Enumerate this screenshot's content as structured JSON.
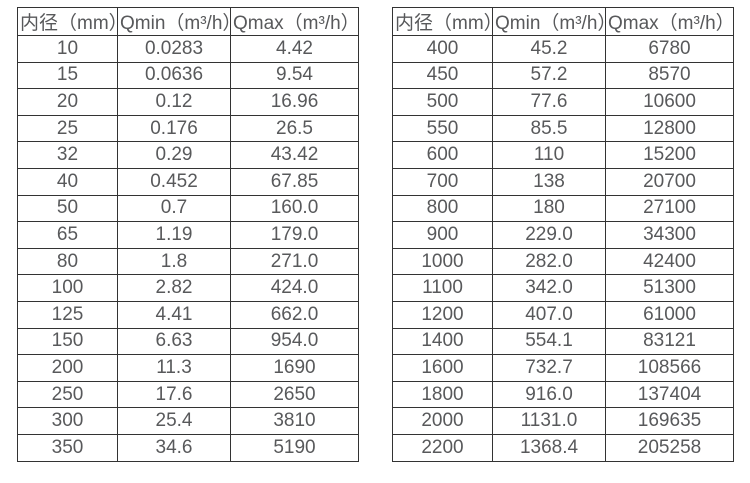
{
  "colors": {
    "border": "#333333",
    "text": "#58595b",
    "background": "#ffffff"
  },
  "tables": [
    {
      "name": "flow-table-small-diameters",
      "headers": [
        "内径（mm）",
        "Qmin（m³/h）",
        "Qmax（m³/h）"
      ],
      "rows": [
        [
          "10",
          "0.0283",
          "4.42"
        ],
        [
          "15",
          "0.0636",
          "9.54"
        ],
        [
          "20",
          "0.12",
          "16.96"
        ],
        [
          "25",
          "0.176",
          "26.5"
        ],
        [
          "32",
          "0.29",
          "43.42"
        ],
        [
          "40",
          "0.452",
          "67.85"
        ],
        [
          "50",
          "0.7",
          "160.0"
        ],
        [
          "65",
          "1.19",
          "179.0"
        ],
        [
          "80",
          "1.8",
          "271.0"
        ],
        [
          "100",
          "2.82",
          "424.0"
        ],
        [
          "125",
          "4.41",
          "662.0"
        ],
        [
          "150",
          "6.63",
          "954.0"
        ],
        [
          "200",
          "11.3",
          "1690"
        ],
        [
          "250",
          "17.6",
          "2650"
        ],
        [
          "300",
          "25.4",
          "3810"
        ],
        [
          "350",
          "34.6",
          "5190"
        ]
      ]
    },
    {
      "name": "flow-table-large-diameters",
      "headers": [
        "内径（mm）",
        "Qmin（m³/h）",
        "Qmax（m³/h）"
      ],
      "rows": [
        [
          "400",
          "45.2",
          "6780"
        ],
        [
          "450",
          "57.2",
          "8570"
        ],
        [
          "500",
          "77.6",
          "10600"
        ],
        [
          "550",
          "85.5",
          "12800"
        ],
        [
          "600",
          "110",
          "15200"
        ],
        [
          "700",
          "138",
          "20700"
        ],
        [
          "800",
          "180",
          "27100"
        ],
        [
          "900",
          "229.0",
          "34300"
        ],
        [
          "1000",
          "282.0",
          "42400"
        ],
        [
          "1100",
          "342.0",
          "51300"
        ],
        [
          "1200",
          "407.0",
          "61000"
        ],
        [
          "1400",
          "554.1",
          "83121"
        ],
        [
          "1600",
          "732.7",
          "108566"
        ],
        [
          "1800",
          "916.0",
          "137404"
        ],
        [
          "2000",
          "1131.0",
          "169635"
        ],
        [
          "2200",
          "1368.4",
          "205258"
        ]
      ]
    }
  ]
}
